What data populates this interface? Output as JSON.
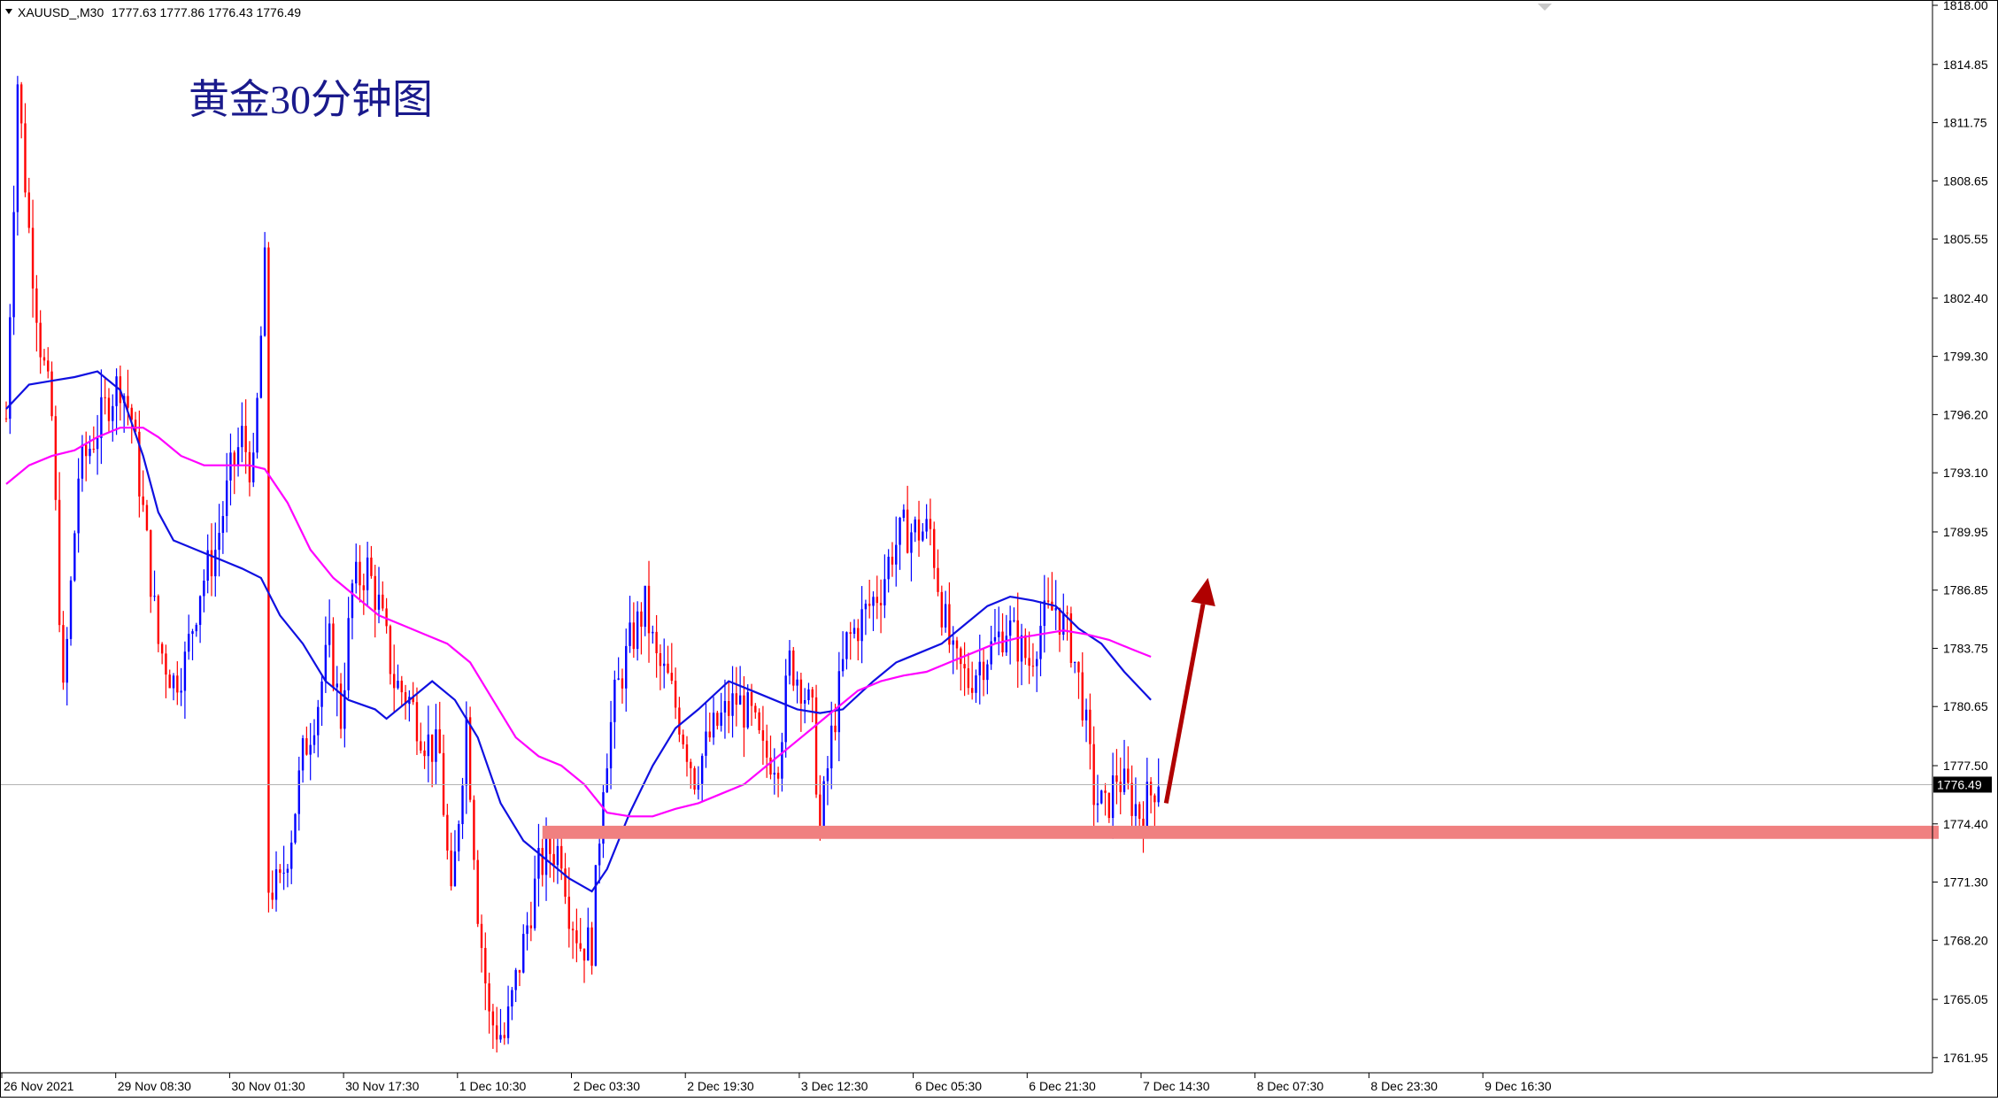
{
  "header": {
    "symbol": "XAUUSD_,M30",
    "ohlc": "1777.63 1777.86 1776.43 1776.49"
  },
  "chart_title": "黄金30分钟图",
  "colors": {
    "background": "#ffffff",
    "bull_candle": "#0000ff",
    "bear_candle": "#ff0000",
    "ma_fast": "#1010e0",
    "ma_slow": "#ff00ff",
    "support_band": "#f08080",
    "arrow": "#b00000",
    "price_tag_bg": "#000000"
  },
  "chart_data": {
    "type": "candlestick",
    "y_ticks": [
      "1818.00",
      "1814.85",
      "1811.75",
      "1808.65",
      "1805.55",
      "1802.40",
      "1799.30",
      "1796.20",
      "1793.10",
      "1789.95",
      "1786.85",
      "1783.75",
      "1780.65",
      "1777.50",
      "1774.40",
      "1771.30",
      "1768.20",
      "1765.05",
      "1761.95"
    ],
    "ylim": [
      1761.0,
      1818.0
    ],
    "x_ticks": [
      "26 Nov 2021",
      "29 Nov 08:30",
      "30 Nov 01:30",
      "30 Nov 17:30",
      "1 Dec 10:30",
      "2 Dec 03:30",
      "2 Dec 19:30",
      "3 Dec 12:30",
      "6 Dec 05:30",
      "6 Dec 21:30",
      "7 Dec 14:30",
      "8 Dec 07:30",
      "8 Dec 23:30",
      "9 Dec 16:30"
    ],
    "current_price": "1776.49",
    "price_path": [
      [
        0,
        1796
      ],
      [
        3,
        1814
      ],
      [
        6,
        1806
      ],
      [
        9,
        1800
      ],
      [
        12,
        1796
      ],
      [
        15,
        1781
      ],
      [
        19,
        1793
      ],
      [
        23,
        1795
      ],
      [
        27,
        1797
      ],
      [
        30,
        1798
      ],
      [
        33,
        1796
      ],
      [
        36,
        1791
      ],
      [
        40,
        1784
      ],
      [
        44,
        1782
      ],
      [
        47,
        1783
      ],
      [
        51,
        1787
      ],
      [
        55,
        1789
      ],
      [
        59,
        1793
      ],
      [
        62,
        1795
      ],
      [
        65,
        1793
      ],
      [
        68,
        1804
      ],
      [
        69,
        1771
      ],
      [
        72,
        1771
      ],
      [
        75,
        1774
      ],
      [
        78,
        1778
      ],
      [
        82,
        1781
      ],
      [
        85,
        1784
      ],
      [
        88,
        1780
      ],
      [
        91,
        1787
      ],
      [
        95,
        1788
      ],
      [
        98,
        1786
      ],
      [
        102,
        1782
      ],
      [
        106,
        1781
      ],
      [
        110,
        1779
      ],
      [
        114,
        1778
      ],
      [
        117,
        1770
      ],
      [
        121,
        1780
      ],
      [
        124,
        1770
      ],
      [
        127,
        1764
      ],
      [
        131,
        1763
      ],
      [
        134,
        1766
      ],
      [
        137,
        1769
      ],
      [
        140,
        1772
      ],
      [
        143,
        1773
      ],
      [
        146,
        1773
      ],
      [
        148,
        1770
      ],
      [
        151,
        1768
      ],
      [
        154,
        1768
      ],
      [
        157,
        1777
      ],
      [
        160,
        1781
      ],
      [
        164,
        1784
      ],
      [
        168,
        1786
      ],
      [
        171,
        1783
      ],
      [
        174,
        1782
      ],
      [
        177,
        1780
      ],
      [
        181,
        1777
      ],
      [
        185,
        1779
      ],
      [
        188,
        1780
      ],
      [
        192,
        1781
      ],
      [
        196,
        1780
      ],
      [
        199,
        1778
      ],
      [
        203,
        1778
      ],
      [
        206,
        1783
      ],
      [
        209,
        1782
      ],
      [
        212,
        1780
      ],
      [
        214,
        1774
      ],
      [
        217,
        1779
      ],
      [
        221,
        1784
      ],
      [
        224,
        1785
      ],
      [
        227,
        1786
      ],
      [
        230,
        1787
      ],
      [
        233,
        1789
      ],
      [
        236,
        1790
      ],
      [
        240,
        1790
      ],
      [
        243,
        1790
      ],
      [
        246,
        1786
      ],
      [
        249,
        1783
      ],
      [
        253,
        1782
      ],
      [
        256,
        1783
      ],
      [
        260,
        1784
      ],
      [
        263,
        1785
      ],
      [
        266,
        1784
      ],
      [
        269,
        1783
      ],
      [
        272,
        1785
      ],
      [
        276,
        1786
      ],
      [
        280,
        1784
      ],
      [
        283,
        1781
      ],
      [
        286,
        1776
      ],
      [
        289,
        1775
      ],
      [
        292,
        1777
      ],
      [
        295,
        1776
      ],
      [
        298,
        1775
      ],
      [
        301,
        1776
      ],
      [
        303,
        1777
      ]
    ],
    "moving_averages": [
      {
        "values": [
          [
            0,
            1796.5
          ],
          [
            6,
            1797.8
          ],
          [
            12,
            1798.0
          ],
          [
            18,
            1798.2
          ],
          [
            24,
            1798.5
          ],
          [
            30,
            1797.5
          ],
          [
            36,
            1794
          ],
          [
            40,
            1791
          ],
          [
            44,
            1789.5
          ],
          [
            50,
            1789
          ],
          [
            56,
            1788.5
          ],
          [
            62,
            1788
          ],
          [
            67,
            1787.5
          ],
          [
            72,
            1785.5
          ],
          [
            78,
            1784
          ],
          [
            84,
            1782
          ],
          [
            90,
            1781
          ],
          [
            97,
            1780.5
          ],
          [
            100,
            1780
          ],
          [
            106,
            1781
          ],
          [
            112,
            1782
          ],
          [
            118,
            1781
          ],
          [
            124,
            1779
          ],
          [
            130,
            1775.5
          ],
          [
            136,
            1773.5
          ],
          [
            142,
            1772.5
          ],
          [
            148,
            1771.5
          ],
          [
            154,
            1770.8
          ],
          [
            158,
            1772
          ],
          [
            164,
            1775
          ],
          [
            170,
            1777.5
          ],
          [
            176,
            1779.5
          ],
          [
            182,
            1780.5
          ],
          [
            190,
            1782
          ],
          [
            196,
            1781.5
          ],
          [
            202,
            1781
          ],
          [
            208,
            1780.5
          ],
          [
            214,
            1780.3
          ],
          [
            220,
            1780.5
          ],
          [
            228,
            1782
          ],
          [
            234,
            1783
          ],
          [
            240,
            1783.5
          ],
          [
            246,
            1784
          ],
          [
            252,
            1785
          ],
          [
            258,
            1786
          ],
          [
            264,
            1786.5
          ],
          [
            270,
            1786.3
          ],
          [
            276,
            1786
          ],
          [
            282,
            1784.8
          ],
          [
            288,
            1784
          ],
          [
            294,
            1782.5
          ],
          [
            301,
            1781
          ]
        ]
      },
      {
        "values": [
          [
            0,
            1792.5
          ],
          [
            6,
            1793.5
          ],
          [
            12,
            1794.0
          ],
          [
            18,
            1794.3
          ],
          [
            24,
            1795
          ],
          [
            30,
            1795.5
          ],
          [
            36,
            1795.5
          ],
          [
            40,
            1795
          ],
          [
            46,
            1794
          ],
          [
            52,
            1793.5
          ],
          [
            58,
            1793.5
          ],
          [
            64,
            1793.5
          ],
          [
            68,
            1793.3
          ],
          [
            74,
            1791.5
          ],
          [
            80,
            1789
          ],
          [
            86,
            1787.5
          ],
          [
            92,
            1786.5
          ],
          [
            98,
            1785.5
          ],
          [
            104,
            1785
          ],
          [
            110,
            1784.5
          ],
          [
            116,
            1784
          ],
          [
            122,
            1783
          ],
          [
            128,
            1781
          ],
          [
            134,
            1779
          ],
          [
            140,
            1778
          ],
          [
            146,
            1777.5
          ],
          [
            152,
            1776.5
          ],
          [
            158,
            1775
          ],
          [
            164,
            1774.8
          ],
          [
            170,
            1774.8
          ],
          [
            176,
            1775.2
          ],
          [
            182,
            1775.5
          ],
          [
            188,
            1776
          ],
          [
            194,
            1776.5
          ],
          [
            200,
            1777.5
          ],
          [
            206,
            1778.5
          ],
          [
            212,
            1779.5
          ],
          [
            218,
            1780.5
          ],
          [
            224,
            1781.5
          ],
          [
            230,
            1782
          ],
          [
            236,
            1782.3
          ],
          [
            242,
            1782.5
          ],
          [
            248,
            1783
          ],
          [
            254,
            1783.5
          ],
          [
            260,
            1784
          ],
          [
            266,
            1784.3
          ],
          [
            272,
            1784.5
          ],
          [
            278,
            1784.7
          ],
          [
            284,
            1784.5
          ],
          [
            290,
            1784.2
          ],
          [
            296,
            1783.7
          ],
          [
            301,
            1783.3
          ]
        ]
      }
    ],
    "support_zone": [
      1773.6,
      1774.3
    ],
    "annotation_arrow": {
      "from": [
        305,
        1775.5
      ],
      "to": [
        316,
        1787.5
      ]
    }
  }
}
